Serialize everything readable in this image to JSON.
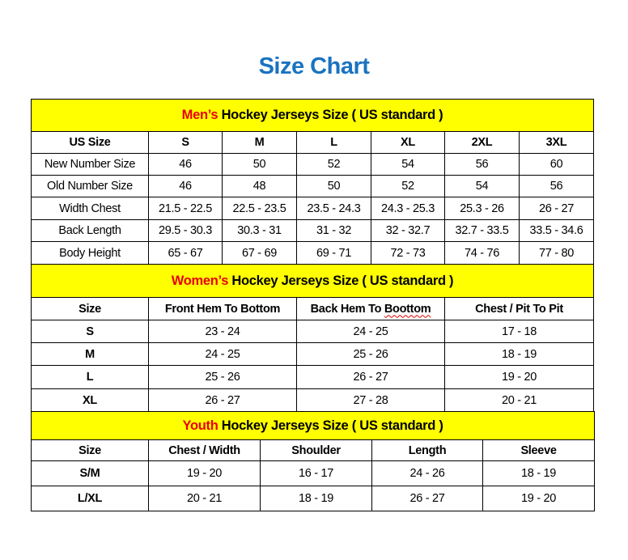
{
  "title": "Size Chart",
  "colors": {
    "title": "#1a73c1",
    "section_bg": "#ffff00",
    "highlight": "#e8000b"
  },
  "mens": {
    "highlight": "Men’s",
    "heading": " Hockey Jerseys Size ( US standard )",
    "headers": [
      "US Size",
      "S",
      "M",
      "L",
      "XL",
      "2XL",
      "3XL"
    ],
    "rows": [
      [
        "New Number Size",
        "46",
        "50",
        "52",
        "54",
        "56",
        "60"
      ],
      [
        "Old Number Size",
        "46",
        "48",
        "50",
        "52",
        "54",
        "56"
      ],
      [
        "Width Chest",
        "21.5 - 22.5",
        "22.5 - 23.5",
        "23.5 - 24.3",
        "24.3 - 25.3",
        "25.3 - 26",
        "26 - 27"
      ],
      [
        "Back Length",
        "29.5 - 30.3",
        "30.3 - 31",
        "31 - 32",
        "32 - 32.7",
        "32.7 - 33.5",
        "33.5 - 34.6"
      ],
      [
        "Body Height",
        "65 - 67",
        "67 - 69",
        "69 - 71",
        "72 - 73",
        "74 - 76",
        "77 - 80"
      ]
    ]
  },
  "womens": {
    "highlight": "Women’s",
    "heading": " Hockey Jerseys Size ( US standard )",
    "headers": [
      "Size",
      "Front Hem To Bottom",
      "Back Hem To Boottom",
      "Chest / Pit To Pit"
    ],
    "rows": [
      [
        "S",
        "23 - 24",
        "24 - 25",
        "17 - 18"
      ],
      [
        "M",
        "24 - 25",
        "25 - 26",
        "18 - 19"
      ],
      [
        "L",
        "25 - 26",
        "26 - 27",
        "19 - 20"
      ],
      [
        "XL",
        "26 - 27",
        "27 - 28",
        "20 - 21"
      ]
    ]
  },
  "youth": {
    "highlight": "Youth",
    "heading": " Hockey Jerseys Size ( US standard )",
    "headers": [
      "Size",
      "Chest / Width",
      "Shoulder",
      "Length",
      "Sleeve"
    ],
    "rows": [
      [
        "S/M",
        "19 - 20",
        "16 - 17",
        "24 - 26",
        "18 - 19"
      ],
      [
        "L/XL",
        "20 - 21",
        "18 - 19",
        "26 - 27",
        "19 - 20"
      ]
    ]
  }
}
